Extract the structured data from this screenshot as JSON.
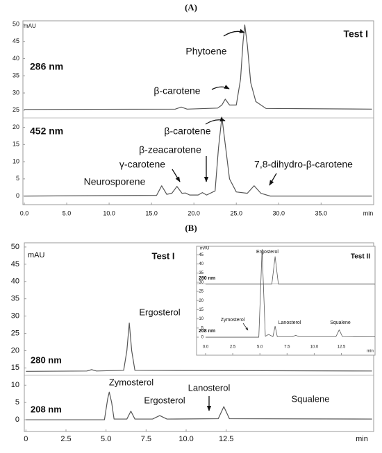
{
  "chart_data": [
    {
      "type": "line",
      "title": "(A)",
      "ylabel": "mAU",
      "xlabel": "min",
      "test_label": "Test I",
      "xlim": [
        0,
        41.2
      ],
      "ylim": [
        -2.5,
        51
      ],
      "xticks": [
        {
          "value": 0,
          "label": "0.0"
        },
        {
          "value": 5,
          "label": "5.0"
        },
        {
          "value": 10,
          "label": "10.0"
        },
        {
          "value": 15,
          "label": "15.0"
        },
        {
          "value": 20,
          "label": "20.0"
        },
        {
          "value": 25,
          "label": "25.0"
        },
        {
          "value": 30,
          "label": "30.0"
        },
        {
          "value": 35,
          "label": "35.0"
        }
      ],
      "yticks": [
        0,
        5,
        10,
        15,
        20,
        25,
        30,
        35,
        40,
        45,
        50
      ],
      "series": [
        {
          "name": "286 nm",
          "color": "#555555",
          "x": [
            0,
            17.8,
            18.5,
            19.2,
            22.8,
            23.3,
            23.7,
            24.2,
            25.0,
            25.5,
            25.8,
            26.0,
            26.3,
            26.7,
            27.3,
            28.5,
            41
          ],
          "values": [
            25.2,
            25.3,
            25.9,
            25.3,
            25.6,
            26.5,
            28.2,
            26.5,
            26.5,
            34,
            45,
            49.8,
            44,
            33,
            27.5,
            25.5,
            25.3
          ]
        },
        {
          "name": "452 nm",
          "color": "#555555",
          "x": [
            0,
            15.6,
            16.2,
            16.8,
            17.4,
            18.0,
            18.6,
            19.0,
            19.5,
            20.5,
            21.0,
            21.5,
            22.5,
            22.9,
            23.3,
            23.7,
            24.2,
            25.0,
            26.3,
            27.1,
            27.9,
            29,
            41
          ],
          "values": [
            0,
            0.2,
            3,
            0.5,
            0.8,
            2.8,
            0.8,
            0.9,
            0.3,
            0.3,
            1.0,
            0.3,
            1.5,
            14,
            23,
            15,
            5,
            1.2,
            0.8,
            3.0,
            0.8,
            0,
            0
          ]
        }
      ],
      "annotations": [
        "Phytoene",
        "β-carotene",
        "β-carotene",
        "β-zeacarotene",
        "γ-carotene",
        "Neurosporene",
        "7,8-dihydro-β-carotene"
      ]
    },
    {
      "type": "line",
      "title": "(B)",
      "ylabel": "mAU",
      "xlabel": "min",
      "test_label": "Test I",
      "xlim": [
        -0.1,
        21.7
      ],
      "ylim": [
        -3.4,
        51.2
      ],
      "xticks": [
        0,
        2.5,
        {
          "value": 5,
          "label": "5.0"
        },
        7.5,
        {
          "value": 10,
          "label": "10.0"
        },
        12.5
      ],
      "yticks": [
        0,
        5,
        10,
        15,
        20,
        25,
        30,
        35,
        40,
        45,
        50
      ],
      "series": [
        {
          "name": "280 nm",
          "color": "#555555",
          "x": [
            0,
            3.8,
            4.1,
            4.4,
            6.1,
            6.3,
            6.45,
            6.6,
            6.8,
            21.6
          ],
          "values": [
            14,
            14.1,
            14.5,
            14.1,
            14.3,
            20,
            28,
            20,
            14.3,
            14.1
          ]
        },
        {
          "name": "208 nm",
          "color": "#555555",
          "x": [
            0,
            4.9,
            5.1,
            5.2,
            5.35,
            5.5,
            6.3,
            6.55,
            6.8,
            7.9,
            8.35,
            8.8,
            12.0,
            12.35,
            12.7,
            21.6
          ],
          "values": [
            0,
            0,
            6,
            8,
            5,
            0.2,
            0.2,
            2.5,
            0.2,
            0.2,
            1.2,
            0.2,
            0.3,
            3.8,
            0.3,
            0.2
          ]
        }
      ],
      "annotations": [
        "Ergosterol",
        "Zymosterol",
        "Ergosterol",
        "Lanosterol",
        "Squalene"
      ]
    },
    {
      "type": "line",
      "ylabel": "mAU",
      "xlabel": "min",
      "test_label": "Test II",
      "xlim": [
        0,
        15.6
      ],
      "ylim": [
        -1.5,
        47
      ],
      "xticks": [
        {
          "value": 0,
          "label": "0.0"
        },
        2.5,
        {
          "value": 5,
          "label": "5.0"
        },
        7.5,
        {
          "value": 10,
          "label": "10.0"
        },
        12.5
      ],
      "yticks": [
        0,
        5,
        10,
        15,
        20,
        25,
        30,
        35,
        40,
        45
      ],
      "series": [
        {
          "name": "280 nm",
          "color": "#555555",
          "x": [
            0,
            6.1,
            6.4,
            6.7,
            15.6
          ],
          "values": [
            29,
            29,
            44,
            29,
            29
          ]
        },
        {
          "name": "208 nm",
          "color": "#555555",
          "x": [
            0,
            4.9,
            5.2,
            5.5,
            5.8,
            6.2,
            6.4,
            6.6,
            8.0,
            8.3,
            8.6,
            12.0,
            12.3,
            12.6,
            15.6
          ],
          "values": [
            0,
            0,
            48,
            0.5,
            1.5,
            0.3,
            6,
            0.3,
            0.3,
            1.0,
            0.3,
            0.3,
            4,
            0.3,
            0.2
          ]
        }
      ],
      "annotations": [
        "Ergosterol",
        "Zymosterol",
        "Lanosterol",
        "Squalene"
      ]
    }
  ]
}
